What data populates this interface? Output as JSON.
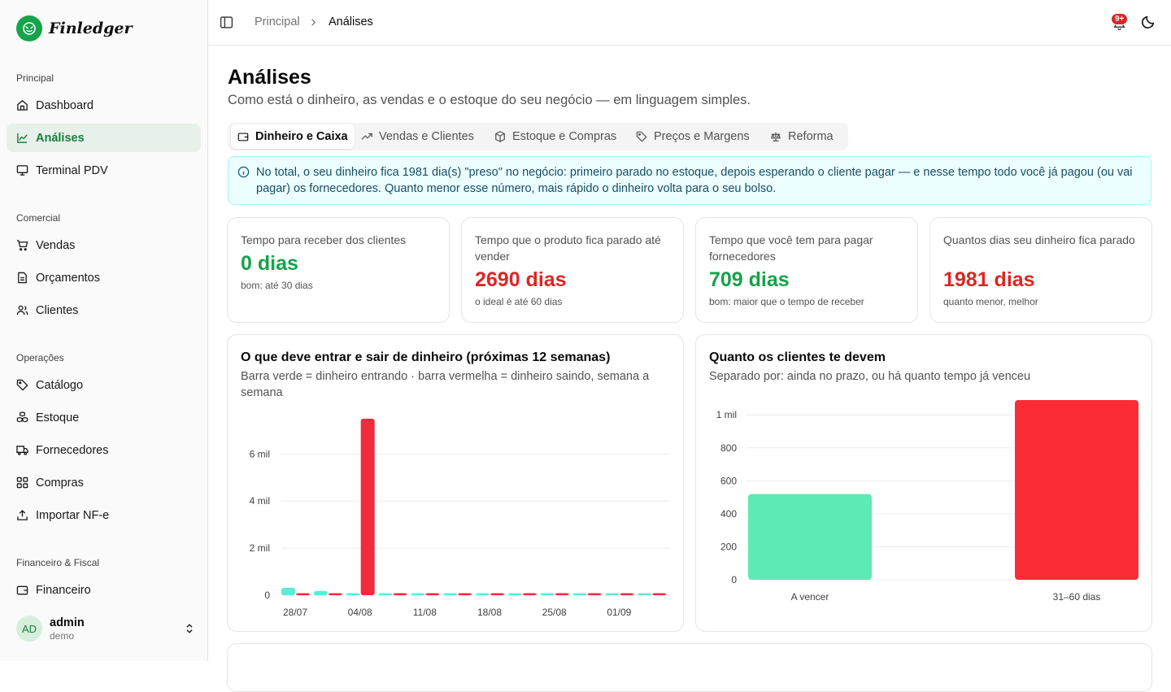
{
  "app": {
    "name": "Finledger"
  },
  "sidebar": {
    "sections": [
      {
        "label": "Principal",
        "items": [
          {
            "label": "Dashboard",
            "icon": "home-icon"
          },
          {
            "label": "Análises",
            "icon": "chart-line-icon",
            "active": true
          },
          {
            "label": "Terminal PDV",
            "icon": "monitor-icon"
          }
        ]
      },
      {
        "label": "Comercial",
        "items": [
          {
            "label": "Vendas",
            "icon": "cart-icon"
          },
          {
            "label": "Orçamentos",
            "icon": "document-icon"
          },
          {
            "label": "Clientes",
            "icon": "users-icon"
          }
        ]
      },
      {
        "label": "Operações",
        "items": [
          {
            "label": "Catálogo",
            "icon": "tag-icon"
          },
          {
            "label": "Estoque",
            "icon": "boxes-icon"
          },
          {
            "label": "Fornecedores",
            "icon": "truck-icon"
          },
          {
            "label": "Compras",
            "icon": "grid-icon"
          },
          {
            "label": "Importar NF-e",
            "icon": "upload-icon"
          }
        ]
      },
      {
        "label": "Financeiro & Fiscal",
        "items": [
          {
            "label": "Financeiro",
            "icon": "wallet-icon"
          }
        ]
      }
    ],
    "user": {
      "initials": "AD",
      "name": "admin",
      "role": "demo"
    }
  },
  "header": {
    "breadcrumb": [
      "Principal",
      "Análises"
    ],
    "notification_badge": "9+"
  },
  "page": {
    "title": "Análises",
    "subtitle": "Como está o dinheiro, as vendas e o estoque do seu negócio — em linguagem simples."
  },
  "tabs": [
    {
      "label": "Dinheiro e Caixa",
      "icon": "wallet-icon",
      "active": true
    },
    {
      "label": "Vendas e Clientes",
      "icon": "trending-up-icon"
    },
    {
      "label": "Estoque e Compras",
      "icon": "package-icon"
    },
    {
      "label": "Preços e Margens",
      "icon": "tag-icon"
    },
    {
      "label": "Reforma",
      "icon": "scale-icon"
    }
  ],
  "info": {
    "text": "No total, o seu dinheiro fica 1981 dia(s) \"preso\" no negócio: primeiro parado no estoque, depois esperando o cliente pagar — e nesse tempo todo você já pagou (ou vai pagar) os fornecedores. Quanto menor esse número, mais rápido o dinheiro volta para o seu bolso."
  },
  "kpis": [
    {
      "label": "Tempo para receber dos clientes",
      "value": "0 dias",
      "note": "bom: até 30 dias",
      "color": "#16a34a"
    },
    {
      "label": "Tempo que o produto fica parado até vender",
      "value": "2690 dias",
      "note": "o ideal é até 60 dias",
      "color": "#dc2626"
    },
    {
      "label": "Tempo que você tem para pagar fornecedores",
      "value": "709 dias",
      "note": "bom: maior que o tempo de receber",
      "color": "#16a34a"
    },
    {
      "label": "Quantos dias seu dinheiro fica parado",
      "value": "1981 dias",
      "note": "quanto menor, melhor",
      "color": "#dc2626"
    }
  ],
  "cards": {
    "cashflow": {
      "title": "O que deve entrar e sair de dinheiro (próximas 12 semanas)",
      "subtitle": "Barra verde = dinheiro entrando · barra vermelha = dinheiro saindo, semana a semana"
    },
    "receivables": {
      "title": "Quanto os clientes te devem",
      "subtitle": "Separado por: ainda no prazo, ou há quanto tempo já venceu"
    }
  },
  "chart_data": [
    {
      "type": "bar",
      "title": "O que deve entrar e sair de dinheiro (próximas 12 semanas)",
      "categories": [
        "28/07",
        "",
        "04/08",
        "",
        "11/08",
        "",
        "18/08",
        "",
        "25/08",
        "",
        "01/09",
        ""
      ],
      "series": [
        {
          "name": "entrando",
          "color": "#5eead4",
          "values": [
            320,
            180,
            0,
            0,
            0,
            0,
            0,
            0,
            0,
            0,
            0,
            0
          ]
        },
        {
          "name": "saindo",
          "color": "#ef2b3d",
          "values": [
            40,
            30,
            7500,
            30,
            30,
            30,
            30,
            30,
            30,
            30,
            30,
            30
          ]
        }
      ],
      "yticks": [
        {
          "v": 0,
          "label": "0"
        },
        {
          "v": 2000,
          "label": "2 mil"
        },
        {
          "v": 4000,
          "label": "4 mil"
        },
        {
          "v": 6000,
          "label": "6 mil"
        }
      ],
      "ylim": [
        0,
        7600
      ],
      "grid": true
    },
    {
      "type": "bar",
      "title": "Quanto os clientes te devem",
      "categories": [
        "A vencer",
        "31–60 dias"
      ],
      "values": [
        520,
        1090
      ],
      "colors": [
        "#5eeab5",
        "#fb2c36"
      ],
      "yticks": [
        {
          "v": 0,
          "label": "0"
        },
        {
          "v": 200,
          "label": "200"
        },
        {
          "v": 400,
          "label": "400"
        },
        {
          "v": 600,
          "label": "600"
        },
        {
          "v": 800,
          "label": "800"
        },
        {
          "v": 1000,
          "label": "1 mil"
        }
      ],
      "ylim": [
        0,
        1090
      ],
      "grid": true
    }
  ]
}
